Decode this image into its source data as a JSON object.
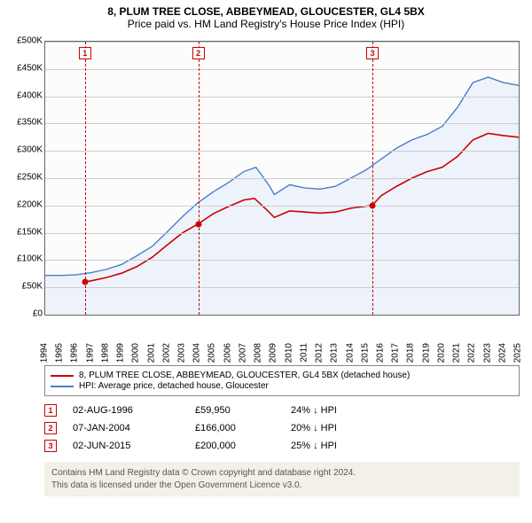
{
  "title_line1": "8, PLUM TREE CLOSE, ABBEYMEAD, GLOUCESTER, GL4 5BX",
  "title_line2": "Price paid vs. HM Land Registry's House Price Index (HPI)",
  "chart": {
    "type": "line",
    "background_color": "#fcfcfc",
    "grid_color": "#cccccc",
    "axis_color": "#666666",
    "label_fontsize": 10,
    "ylim": [
      0,
      500000
    ],
    "ytick_step": 50000,
    "yticks": [
      "£0",
      "£50K",
      "£100K",
      "£150K",
      "£200K",
      "£250K",
      "£300K",
      "£350K",
      "£400K",
      "£450K",
      "£500K"
    ],
    "xlim": [
      1994,
      2025
    ],
    "xticks": [
      "1994",
      "1995",
      "1996",
      "1997",
      "1998",
      "1999",
      "2000",
      "2001",
      "2002",
      "2003",
      "2004",
      "2005",
      "2006",
      "2007",
      "2008",
      "2009",
      "2010",
      "2011",
      "2012",
      "2013",
      "2014",
      "2015",
      "2016",
      "2017",
      "2018",
      "2019",
      "2020",
      "2021",
      "2022",
      "2023",
      "2024",
      "2025"
    ],
    "series": {
      "property": {
        "color": "#cc0000",
        "width": 1.6,
        "data": [
          [
            1996.6,
            59950
          ],
          [
            1997,
            62000
          ],
          [
            1998,
            68000
          ],
          [
            1999,
            76000
          ],
          [
            2000,
            88000
          ],
          [
            2001,
            105000
          ],
          [
            2002,
            128000
          ],
          [
            2003,
            150000
          ],
          [
            2004.0,
            166000
          ],
          [
            2005,
            185000
          ],
          [
            2006,
            198000
          ],
          [
            2007,
            210000
          ],
          [
            2007.7,
            213000
          ],
          [
            2008.5,
            192000
          ],
          [
            2009,
            178000
          ],
          [
            2010,
            190000
          ],
          [
            2011,
            188000
          ],
          [
            2012,
            186000
          ],
          [
            2013,
            188000
          ],
          [
            2014,
            195000
          ],
          [
            2015.4,
            200000
          ],
          [
            2016,
            218000
          ],
          [
            2017,
            235000
          ],
          [
            2018,
            250000
          ],
          [
            2019,
            262000
          ],
          [
            2020,
            270000
          ],
          [
            2021,
            290000
          ],
          [
            2022,
            320000
          ],
          [
            2023,
            332000
          ],
          [
            2024,
            328000
          ],
          [
            2025,
            325000
          ]
        ]
      },
      "hpi": {
        "color": "#4a7ec8",
        "width": 1.4,
        "fill": "#eef3fb",
        "data": [
          [
            1994,
            72000
          ],
          [
            1995,
            72000
          ],
          [
            1996,
            73000
          ],
          [
            1997,
            77000
          ],
          [
            1998,
            83000
          ],
          [
            1999,
            92000
          ],
          [
            2000,
            108000
          ],
          [
            2001,
            125000
          ],
          [
            2002,
            152000
          ],
          [
            2003,
            180000
          ],
          [
            2004,
            205000
          ],
          [
            2005,
            225000
          ],
          [
            2006,
            242000
          ],
          [
            2007,
            262000
          ],
          [
            2007.8,
            270000
          ],
          [
            2008.7,
            235000
          ],
          [
            2009,
            220000
          ],
          [
            2010,
            238000
          ],
          [
            2011,
            232000
          ],
          [
            2012,
            230000
          ],
          [
            2013,
            235000
          ],
          [
            2014,
            250000
          ],
          [
            2015,
            265000
          ],
          [
            2016,
            285000
          ],
          [
            2017,
            305000
          ],
          [
            2018,
            320000
          ],
          [
            2019,
            330000
          ],
          [
            2020,
            345000
          ],
          [
            2021,
            380000
          ],
          [
            2022,
            425000
          ],
          [
            2023,
            435000
          ],
          [
            2024,
            425000
          ],
          [
            2025,
            420000
          ]
        ]
      }
    },
    "sale_markers": [
      {
        "n": "1",
        "year": 1996.6,
        "price": 59950,
        "line_color": "#cc0000",
        "box_color": "#cc0000"
      },
      {
        "n": "2",
        "year": 2004.02,
        "price": 166000,
        "line_color": "#cc0000",
        "box_color": "#cc0000"
      },
      {
        "n": "3",
        "year": 2015.42,
        "price": 200000,
        "line_color": "#cc0000",
        "box_color": "#cc0000"
      }
    ]
  },
  "legend": {
    "property": {
      "color": "#cc0000",
      "label": "8, PLUM TREE CLOSE, ABBEYMEAD, GLOUCESTER, GL4 5BX (detached house)"
    },
    "hpi": {
      "color": "#4a7ec8",
      "label": "HPI: Average price, detached house, Gloucester"
    }
  },
  "sales": [
    {
      "n": "1",
      "date": "02-AUG-1996",
      "price": "£59,950",
      "diff": "24% ↓ HPI"
    },
    {
      "n": "2",
      "date": "07-JAN-2004",
      "price": "£166,000",
      "diff": "20% ↓ HPI"
    },
    {
      "n": "3",
      "date": "02-JUN-2015",
      "price": "£200,000",
      "diff": "25% ↓ HPI"
    }
  ],
  "footer_line1": "Contains HM Land Registry data © Crown copyright and database right 2024.",
  "footer_line2": "This data is licensed under the Open Government Licence v3.0.",
  "colors": {
    "footer_bg": "#f3f0e8",
    "footer_text": "#555555"
  }
}
